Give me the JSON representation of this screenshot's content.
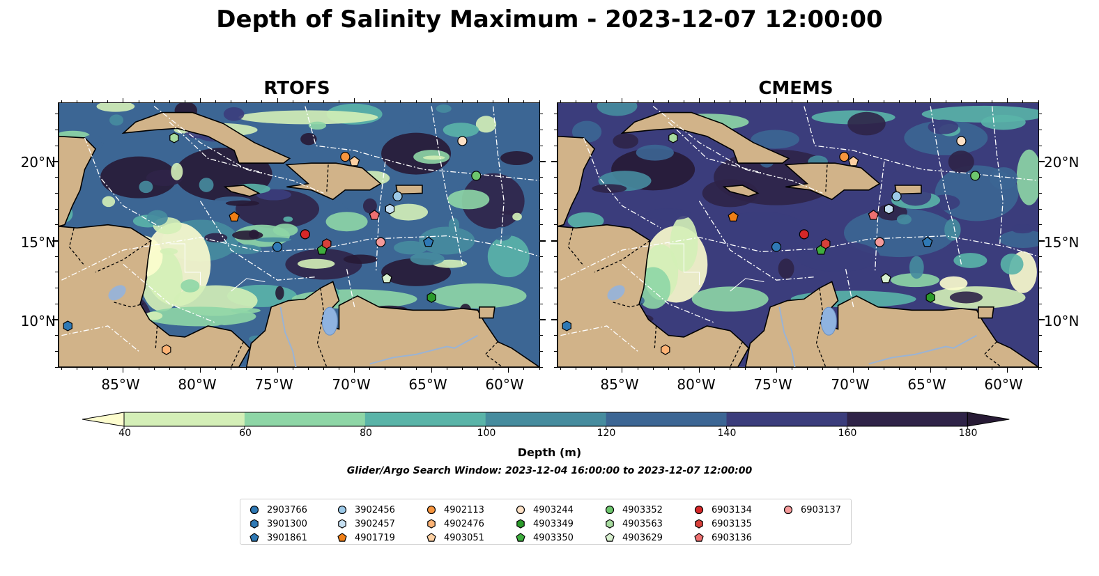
{
  "title": "Depth of Salinity Maximum - 2023-12-07 12:00:00",
  "panels": [
    {
      "title": "RTOFS"
    },
    {
      "title": "CMEMS"
    }
  ],
  "axes": {
    "lat_labels": [
      "20°N",
      "15°N",
      "10°N"
    ],
    "lon_labels": [
      "85°W",
      "80°W",
      "75°W",
      "70°W",
      "65°W",
      "60°W"
    ]
  },
  "colorbar": {
    "ticks": [
      "40",
      "60",
      "80",
      "100",
      "120",
      "140",
      "160",
      "180"
    ],
    "colors": [
      "#fdfdce",
      "#d4efb7",
      "#8ed6a6",
      "#5ab4a8",
      "#468c9e",
      "#3c6694",
      "#3b3d7c",
      "#2f2348",
      "#271a35"
    ],
    "label": "Depth (m)",
    "subtitle": "Glider/Argo Search Window: 2023-12-04 16:00:00 to 2023-12-07 12:00:00"
  },
  "map_colors": {
    "land": "#d1b389",
    "coast": "#000000",
    "river": "#9ab3d4",
    "lake": "#8fb3e0"
  },
  "legend": [
    {
      "id": "2903766",
      "marker": "circle",
      "color": "#2f79b5"
    },
    {
      "id": "3901300",
      "marker": "hexagon",
      "color": "#2f79b5"
    },
    {
      "id": "3901861",
      "marker": "pentagon",
      "color": "#2f79b5"
    },
    {
      "id": "3902456",
      "marker": "circle",
      "color": "#9cc9e8"
    },
    {
      "id": "3902457",
      "marker": "hexagon",
      "color": "#c6e0f2"
    },
    {
      "id": "4901719",
      "marker": "pentagon",
      "color": "#f07f16"
    },
    {
      "id": "4902113",
      "marker": "circle",
      "color": "#f7953e"
    },
    {
      "id": "4902476",
      "marker": "hexagon",
      "color": "#fdb375"
    },
    {
      "id": "4903051",
      "marker": "pentagon",
      "color": "#fdd0a2"
    },
    {
      "id": "4903244",
      "marker": "circle",
      "color": "#fde1c6"
    },
    {
      "id": "4903349",
      "marker": "hexagon",
      "color": "#2a9a2a"
    },
    {
      "id": "4903350",
      "marker": "pentagon",
      "color": "#3fae3f"
    },
    {
      "id": "4903352",
      "marker": "circle",
      "color": "#6dc66d"
    },
    {
      "id": "4903563",
      "marker": "hexagon",
      "color": "#a8dca0"
    },
    {
      "id": "4903629",
      "marker": "pentagon",
      "color": "#d8f0cf"
    },
    {
      "id": "6903134",
      "marker": "circle",
      "color": "#d62728"
    },
    {
      "id": "6903135",
      "marker": "hexagon",
      "color": "#d8403a"
    },
    {
      "id": "6903136",
      "marker": "pentagon",
      "color": "#ee7070"
    },
    {
      "id": "6903137",
      "marker": "circle",
      "color": "#f59a9a"
    }
  ],
  "floats": [
    {
      "id": "2903766",
      "lon": -75.0,
      "lat": 14.6
    },
    {
      "id": "3901300",
      "lon": -88.6,
      "lat": 9.6
    },
    {
      "id": "3901861",
      "lon": -65.2,
      "lat": 14.9
    },
    {
      "id": "3902456",
      "lon": -67.2,
      "lat": 17.8
    },
    {
      "id": "3902457",
      "lon": -67.7,
      "lat": 17.0
    },
    {
      "id": "4901719",
      "lon": -77.8,
      "lat": 16.5
    },
    {
      "id": "4902113",
      "lon": -70.6,
      "lat": 20.3
    },
    {
      "id": "4902476",
      "lon": -82.2,
      "lat": 8.1
    },
    {
      "id": "4903051",
      "lon": -70.0,
      "lat": 20.0
    },
    {
      "id": "4903244",
      "lon": -63.0,
      "lat": 21.3
    },
    {
      "id": "4903349",
      "lon": -65.0,
      "lat": 11.4
    },
    {
      "id": "4903350",
      "lon": -72.1,
      "lat": 14.4
    },
    {
      "id": "4903352",
      "lon": -62.1,
      "lat": 19.1
    },
    {
      "id": "4903563",
      "lon": -81.7,
      "lat": 21.5
    },
    {
      "id": "4903629",
      "lon": -67.9,
      "lat": 12.6
    },
    {
      "id": "6903134",
      "lon": -73.2,
      "lat": 15.4
    },
    {
      "id": "6903135",
      "lon": -71.8,
      "lat": 14.8
    },
    {
      "id": "6903136",
      "lon": -68.7,
      "lat": 16.6
    },
    {
      "id": "6903137",
      "lon": -68.3,
      "lat": 14.9
    }
  ]
}
